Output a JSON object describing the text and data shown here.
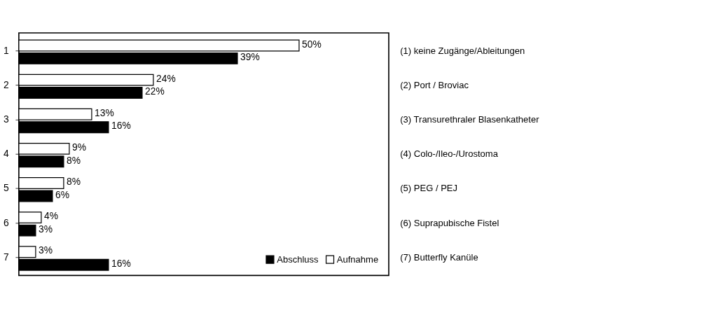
{
  "chart_data": {
    "type": "bar",
    "orientation": "horizontal",
    "categories": [
      "1",
      "2",
      "3",
      "4",
      "5",
      "6",
      "7"
    ],
    "series": [
      {
        "name": "Aufnahme",
        "color": "#ffffff",
        "values": [
          50,
          24,
          13,
          9,
          8,
          4,
          3
        ],
        "value_labels": [
          "50%",
          "24%",
          "13%",
          "9%",
          "8%",
          "4%",
          "3%"
        ]
      },
      {
        "name": "Abschluss",
        "color": "#000000",
        "values": [
          39,
          22,
          16,
          8,
          6,
          3,
          16
        ],
        "value_labels": [
          "39%",
          "22%",
          "16%",
          "8%",
          "6%",
          "3%",
          "16%"
        ]
      }
    ],
    "xlim": [
      0,
      66
    ],
    "tick_labels": "y",
    "legend": "bottom right",
    "annotations": [
      "(1)  keine Zugänge/Ableitungen",
      "(2)  Port / Broviac",
      "(3)  Transurethraler Blasenkatheter",
      "(4)  Colo-/Ileo-/Urostoma",
      "(5)  PEG / PEJ",
      "(6)  Suprapubische Fistel",
      "(7) Butterfly Kanüle"
    ]
  }
}
